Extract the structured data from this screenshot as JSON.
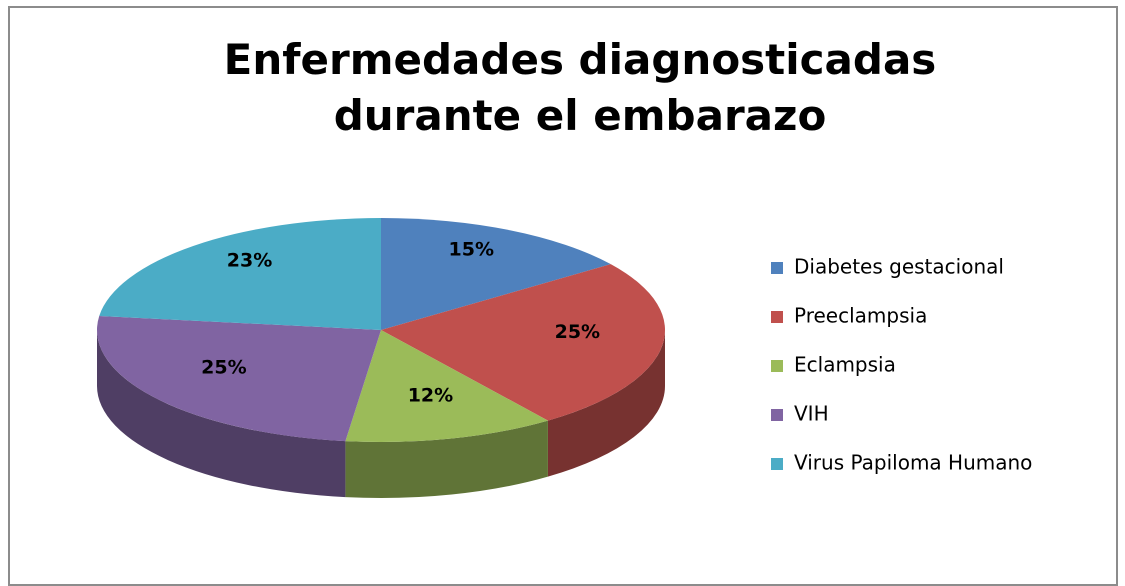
{
  "chart_data": {
    "type": "pie",
    "title": "Enfermedades diagnosticadas durante el embarazo",
    "categories": [
      "Diabetes gestacional",
      "Preeclampsia",
      "Eclampsia",
      "VIH",
      "Virus Papiloma Humano"
    ],
    "values": [
      15,
      25,
      12,
      25,
      23
    ],
    "value_labels": [
      "15%",
      "25%",
      "12%",
      "25%",
      "23%"
    ],
    "colors": [
      "#4f81bd",
      "#c0504d",
      "#9bbb59",
      "#8064a2",
      "#4bacc6"
    ],
    "legend": "right"
  }
}
